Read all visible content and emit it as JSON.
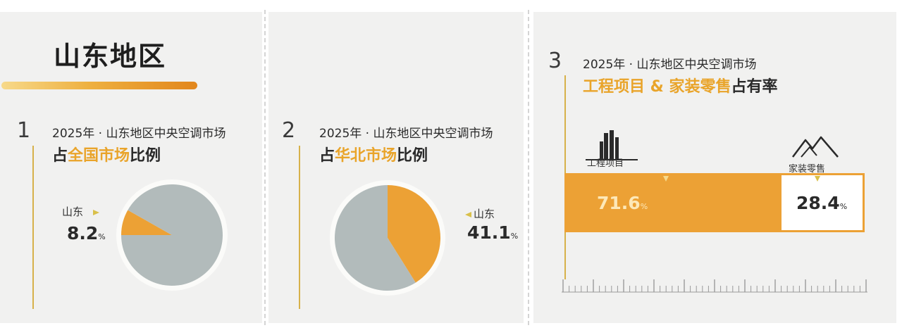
{
  "region_title": "山东地区",
  "colors": {
    "accent": "#eca135",
    "pie_gray": "#b2bbbb",
    "pie_ring": "#fbfbf9",
    "text": "#2a2a2a"
  },
  "panels": [
    {
      "number": "1",
      "line1": "2025年 · 山东地区中央空调市场",
      "line2": {
        "pre": "占",
        "highlight": "全国市场",
        "post": "比例"
      },
      "label": "山东",
      "value": "8.2",
      "unit": "%"
    },
    {
      "number": "2",
      "line1": "2025年 · 山东地区中央空调市场",
      "line2": {
        "pre": "占",
        "highlight": "华北市场",
        "post": "比例"
      },
      "label": "山东",
      "value": "41.1",
      "unit": "%"
    },
    {
      "number": "3",
      "line1": "2025年 · 山东地区中央空调市场",
      "line2": {
        "highlight": "工程项目 & 家装零售",
        "post": "占有率"
      },
      "bar_labels": [
        "工程项目",
        "家装零售"
      ],
      "bar_values": [
        "71.6",
        "28.4"
      ],
      "unit": "%"
    }
  ],
  "chart_data": [
    {
      "type": "pie",
      "title": "2025年 · 山东地区中央空调市场 占全国市场比例",
      "slices": [
        {
          "name": "山东",
          "value": 8.2
        },
        {
          "value": 91.8
        }
      ],
      "unit": "%"
    },
    {
      "type": "pie",
      "title": "2025年 · 山东地区中央空调市场 占华北市场比例",
      "slices": [
        {
          "name": "山东",
          "value": 41.1
        },
        {
          "value": 58.9
        }
      ],
      "unit": "%"
    },
    {
      "type": "bar",
      "orientation": "stacked-horizontal",
      "title": "2025年 · 山东地区中央空调市场 工程项目 & 家装零售 占有率",
      "categories": [
        "工程项目",
        "家装零售"
      ],
      "values": [
        71.6,
        28.4
      ],
      "unit": "%"
    }
  ]
}
